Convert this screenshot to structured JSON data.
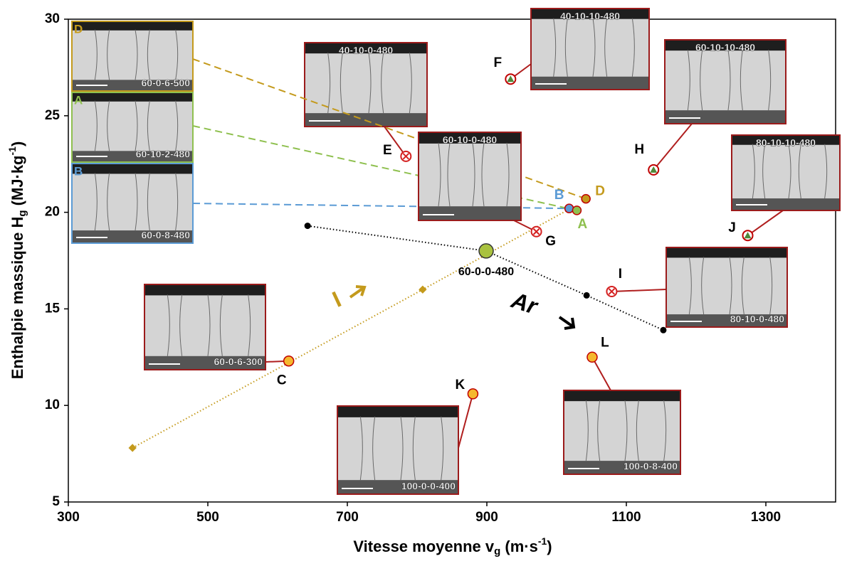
{
  "chart_data": {
    "type": "scatter",
    "x_label": [
      "Vitesse moyenne v",
      "g",
      " (m·s",
      "-1",
      ")"
    ],
    "y_label": [
      "Enthalpie massique H",
      "g",
      " (MJ·kg",
      "-1",
      ")"
    ],
    "xlim": [
      300,
      1400
    ],
    "xticks": [
      300,
      500,
      700,
      900,
      1100,
      1300
    ],
    "ylim": [
      5,
      30
    ],
    "yticks": [
      5,
      10,
      15,
      20,
      25,
      30
    ],
    "points": [
      {
        "label": "F",
        "x": 934,
        "y": 26.9,
        "marker": "triangle",
        "color": "#4f8a3a",
        "inset": "40-10-10-480"
      },
      {
        "label": "E",
        "x": 784,
        "y": 22.9,
        "marker": "cross",
        "color": "#d42020",
        "inset": "40-10-0-480"
      },
      {
        "label": "H",
        "x": 1139,
        "y": 22.2,
        "marker": "triangle",
        "color": "#4f8a3a",
        "inset": "60-10-10-480"
      },
      {
        "label": "J",
        "x": 1274,
        "y": 18.8,
        "marker": "triangle",
        "color": "#4f8a3a",
        "inset": "80-10-10-480"
      },
      {
        "label": "B",
        "x": 1018,
        "y": 20.2,
        "marker": "dot",
        "color": "#5b9bd5",
        "inset": "60-0-8-480"
      },
      {
        "label": "A",
        "x": 1029,
        "y": 20.1,
        "marker": "dot",
        "color": "#8fc04f",
        "inset": "60-10-2-480"
      },
      {
        "label": "D",
        "x": 1042,
        "y": 20.7,
        "marker": "dot",
        "color": "#c49a1c",
        "inset": "60-0-6-500"
      },
      {
        "label": "G",
        "x": 971,
        "y": 19.0,
        "marker": "cross",
        "color": "#d42020",
        "inset": "60-10-0-480"
      },
      {
        "label": "I",
        "x": 1079,
        "y": 15.9,
        "marker": "cross",
        "color": "#d42020",
        "inset": "80-10-0-480"
      },
      {
        "label": "L",
        "x": 1051,
        "y": 12.5,
        "marker": "filled",
        "color": "#f5b82e",
        "inset": "100-0-8-400"
      },
      {
        "label": "C",
        "x": 616,
        "y": 12.3,
        "marker": "filled",
        "color": "#f5b82e",
        "inset": "60-0-6-300"
      },
      {
        "label": "K",
        "x": 880,
        "y": 10.6,
        "marker": "filled",
        "color": "#f5b82e",
        "inset": "100-0-0-400"
      },
      {
        "label": "60-0-0-480",
        "x": 899,
        "y": 18.0,
        "marker": "big",
        "color": "#a9c23f"
      }
    ],
    "series": [
      {
        "name": "Ar",
        "color": "#000000",
        "x": [
          643,
          899,
          1043,
          1153
        ],
        "values": [
          19.3,
          18.0,
          15.7,
          13.9
        ]
      },
      {
        "name": "I",
        "color": "#c49a1c",
        "x": [
          392,
          808,
          1020
        ],
        "values": [
          7.8,
          16.0,
          20.2
        ]
      }
    ]
  }
}
